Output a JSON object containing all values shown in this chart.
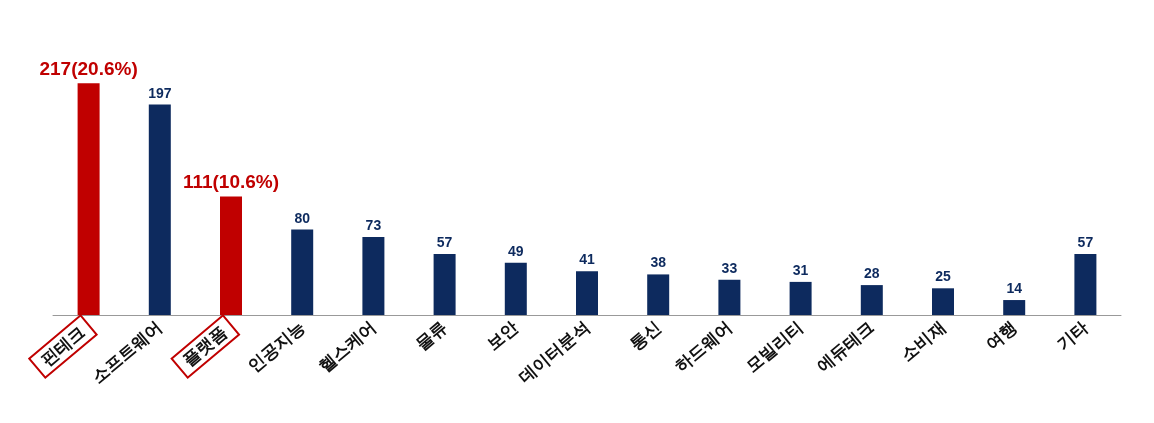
{
  "chart_data": {
    "type": "bar",
    "categories": [
      "핀테크",
      "소프트웨어",
      "플랫폼",
      "인공지능",
      "헬스케어",
      "물류",
      "보안",
      "데이터분석",
      "통신",
      "하드웨어",
      "모빌리티",
      "에듀테크",
      "소비재",
      "여행",
      "기타"
    ],
    "values": [
      217,
      197,
      111,
      80,
      73,
      57,
      49,
      41,
      38,
      33,
      31,
      28,
      25,
      14,
      57
    ],
    "colors": [
      "#c00000",
      "#0d2a5e",
      "#c00000",
      "#0d2a5e",
      "#0d2a5e",
      "#0d2a5e",
      "#0d2a5e",
      "#0d2a5e",
      "#0d2a5e",
      "#0d2a5e",
      "#0d2a5e",
      "#0d2a5e",
      "#0d2a5e",
      "#0d2a5e",
      "#0d2a5e"
    ],
    "value_labels": [
      "217(20.6%)",
      "197",
      "111(10.6%)",
      "80",
      "73",
      "57",
      "49",
      "41",
      "38",
      "33",
      "31",
      "28",
      "25",
      "14",
      "57"
    ]
  }
}
